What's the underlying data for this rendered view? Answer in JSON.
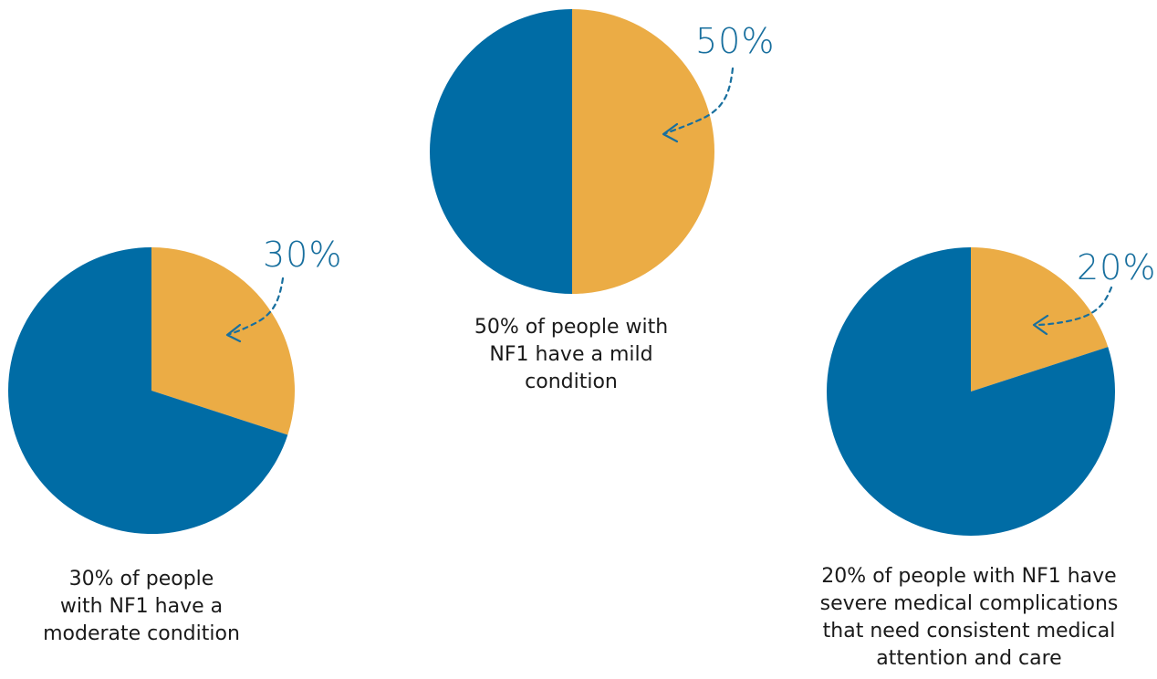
{
  "colors": {
    "primary": "#006ca5",
    "accent": "#ebac45",
    "annotation": "#186f9e"
  },
  "chart_data": [
    {
      "type": "pie",
      "id": "mild",
      "slices": [
        {
          "name": "",
          "value": 50,
          "color": "#ebac45"
        },
        {
          "name": "",
          "value": 50,
          "color": "#006ca5"
        }
      ],
      "annotation": "50%",
      "caption": [
        "50% of people with",
        "NF1  have a mild",
        "condition"
      ]
    },
    {
      "type": "pie",
      "id": "moderate",
      "slices": [
        {
          "name": "",
          "value": 30,
          "color": "#ebac45"
        },
        {
          "name": "",
          "value": 70,
          "color": "#006ca5"
        }
      ],
      "annotation": "30%",
      "caption": [
        "30% of people",
        "with NF1 have a",
        "moderate condition"
      ]
    },
    {
      "type": "pie",
      "id": "severe",
      "slices": [
        {
          "name": "",
          "value": 20,
          "color": "#ebac45"
        },
        {
          "name": "",
          "value": 80,
          "color": "#006ca5"
        }
      ],
      "annotation": "20%",
      "caption": [
        "20% of people with NF1 have",
        "severe medical complications",
        "that need consistent medical",
        "attention and care"
      ]
    }
  ]
}
